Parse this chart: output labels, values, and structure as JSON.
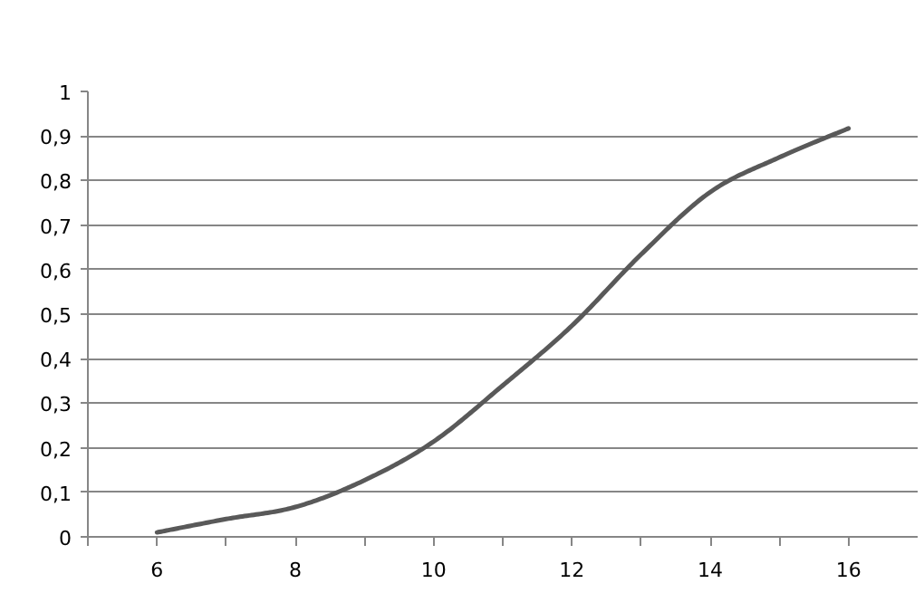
{
  "chart_data": {
    "type": "line",
    "x": [
      6,
      7,
      8,
      9,
      10,
      11,
      12,
      13,
      14,
      15,
      16
    ],
    "series": [
      {
        "color": "#595959",
        "values": [
          0.01,
          0.04,
          0.067,
          0.127,
          0.214,
          0.34,
          0.474,
          0.634,
          0.774,
          0.852,
          0.917
        ]
      }
    ],
    "xlim": [
      5,
      17
    ],
    "xticks": [
      {
        "value": 5,
        "label": null
      },
      6,
      {
        "value": 7,
        "label": null
      },
      8,
      {
        "value": 9,
        "label": null
      },
      10,
      {
        "value": 11,
        "label": null
      },
      12,
      {
        "value": 13,
        "label": null
      },
      14,
      {
        "value": 15,
        "label": null
      },
      16
    ],
    "ylim": [
      0,
      1
    ],
    "yticks": [
      {
        "value": 0,
        "label": "0"
      },
      {
        "value": 0.1,
        "label": "0,1"
      },
      {
        "value": 0.2,
        "label": "0,2"
      },
      {
        "value": 0.3,
        "label": "0,3"
      },
      {
        "value": 0.4,
        "label": "0,4"
      },
      {
        "value": 0.5,
        "label": "0,5"
      },
      {
        "value": 0.6,
        "label": "0,6"
      },
      {
        "value": 0.7,
        "label": "0,7"
      },
      {
        "value": 0.8,
        "label": "0,8"
      },
      {
        "value": 0.9,
        "label": "0,9"
      },
      {
        "value": 1,
        "label": "1"
      }
    ],
    "grid": "y",
    "marker": "none",
    "line_style": "solid"
  }
}
